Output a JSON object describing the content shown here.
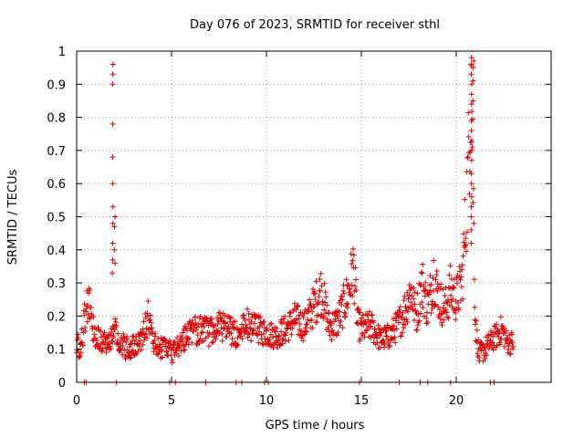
{
  "chart_data": {
    "type": "scatter",
    "title": "Day 076 of 2023, SRMTID for receiver sthl",
    "xlabel": "GPS time / hours",
    "ylabel": "SRMTID / TECUs",
    "xlim": [
      0,
      25
    ],
    "ylim": [
      0,
      1
    ],
    "xticks": [
      0,
      5,
      10,
      15,
      20
    ],
    "yticks": [
      0,
      0.1,
      0.2,
      0.3,
      0.4,
      0.5,
      0.6,
      0.7,
      0.8,
      0.9,
      1
    ],
    "xtick_labels": [
      "0",
      "5",
      "10",
      "15",
      "20"
    ],
    "ytick_labels": [
      "0",
      "0.1",
      "0.2",
      "0.3",
      "0.4",
      "0.5",
      "0.6",
      "0.7",
      "0.8",
      "0.9",
      "1"
    ],
    "grid": true,
    "marker": "+",
    "color": "#e00000",
    "trend": {
      "x": [
        0.0,
        0.2,
        0.4,
        0.6,
        0.8,
        1.0,
        1.3,
        1.6,
        1.8,
        2.0,
        2.3,
        2.7,
        3.0,
        3.5,
        3.8,
        4.0,
        4.5,
        5.0,
        5.5,
        6.0,
        6.5,
        7.0,
        7.5,
        8.0,
        8.5,
        9.0,
        9.5,
        10.0,
        10.5,
        11.0,
        11.5,
        12.0,
        12.5,
        12.9,
        13.3,
        13.7,
        14.0,
        14.3,
        14.6,
        14.8,
        15.0,
        15.5,
        16.0,
        16.5,
        17.0,
        17.3,
        17.6,
        17.9,
        18.2,
        18.5,
        18.8,
        19.1,
        19.4,
        19.7,
        20.0,
        20.3,
        20.6,
        20.8,
        21.0,
        21.2,
        21.5,
        21.8,
        22.1,
        22.4,
        22.7,
        23.0
      ],
      "y": [
        0.12,
        0.1,
        0.18,
        0.25,
        0.19,
        0.14,
        0.13,
        0.12,
        0.14,
        0.16,
        0.12,
        0.1,
        0.11,
        0.14,
        0.2,
        0.12,
        0.1,
        0.09,
        0.12,
        0.15,
        0.16,
        0.15,
        0.17,
        0.16,
        0.14,
        0.18,
        0.16,
        0.15,
        0.14,
        0.16,
        0.19,
        0.17,
        0.23,
        0.28,
        0.17,
        0.18,
        0.22,
        0.27,
        0.35,
        0.18,
        0.16,
        0.17,
        0.13,
        0.14,
        0.18,
        0.22,
        0.28,
        0.2,
        0.3,
        0.22,
        0.33,
        0.25,
        0.22,
        0.28,
        0.25,
        0.3,
        0.6,
        0.95,
        0.18,
        0.08,
        0.1,
        0.12,
        0.14,
        0.16,
        0.12,
        0.12
      ]
    },
    "spikes": [
      {
        "x": 1.9,
        "y": [
          0.96,
          0.93,
          0.9,
          0.78,
          0.68,
          0.6,
          0.53,
          0.48,
          0.42,
          0.37,
          0.33
        ]
      },
      {
        "x": 2.0,
        "y": [
          0.5,
          0.47,
          0.4,
          0.36
        ]
      },
      {
        "x": 20.8,
        "y": [
          0.98,
          0.96,
          0.93,
          0.9,
          0.87,
          0.84,
          0.79,
          0.76,
          0.73,
          0.7,
          0.67,
          0.63,
          0.6,
          0.56,
          0.53,
          0.5,
          0.46,
          0.42
        ]
      },
      {
        "x": 20.9,
        "y": [
          0.97,
          0.95,
          0.91,
          0.85
        ]
      }
    ],
    "zero_x": [
      0.4,
      0.5,
      2.1,
      4.9,
      5.2,
      6.8,
      8.4,
      8.7,
      9.9,
      10.1,
      14.9,
      17.0,
      18.1,
      18.5,
      19.7,
      21.8,
      22.0
    ],
    "point_count": 1100
  }
}
